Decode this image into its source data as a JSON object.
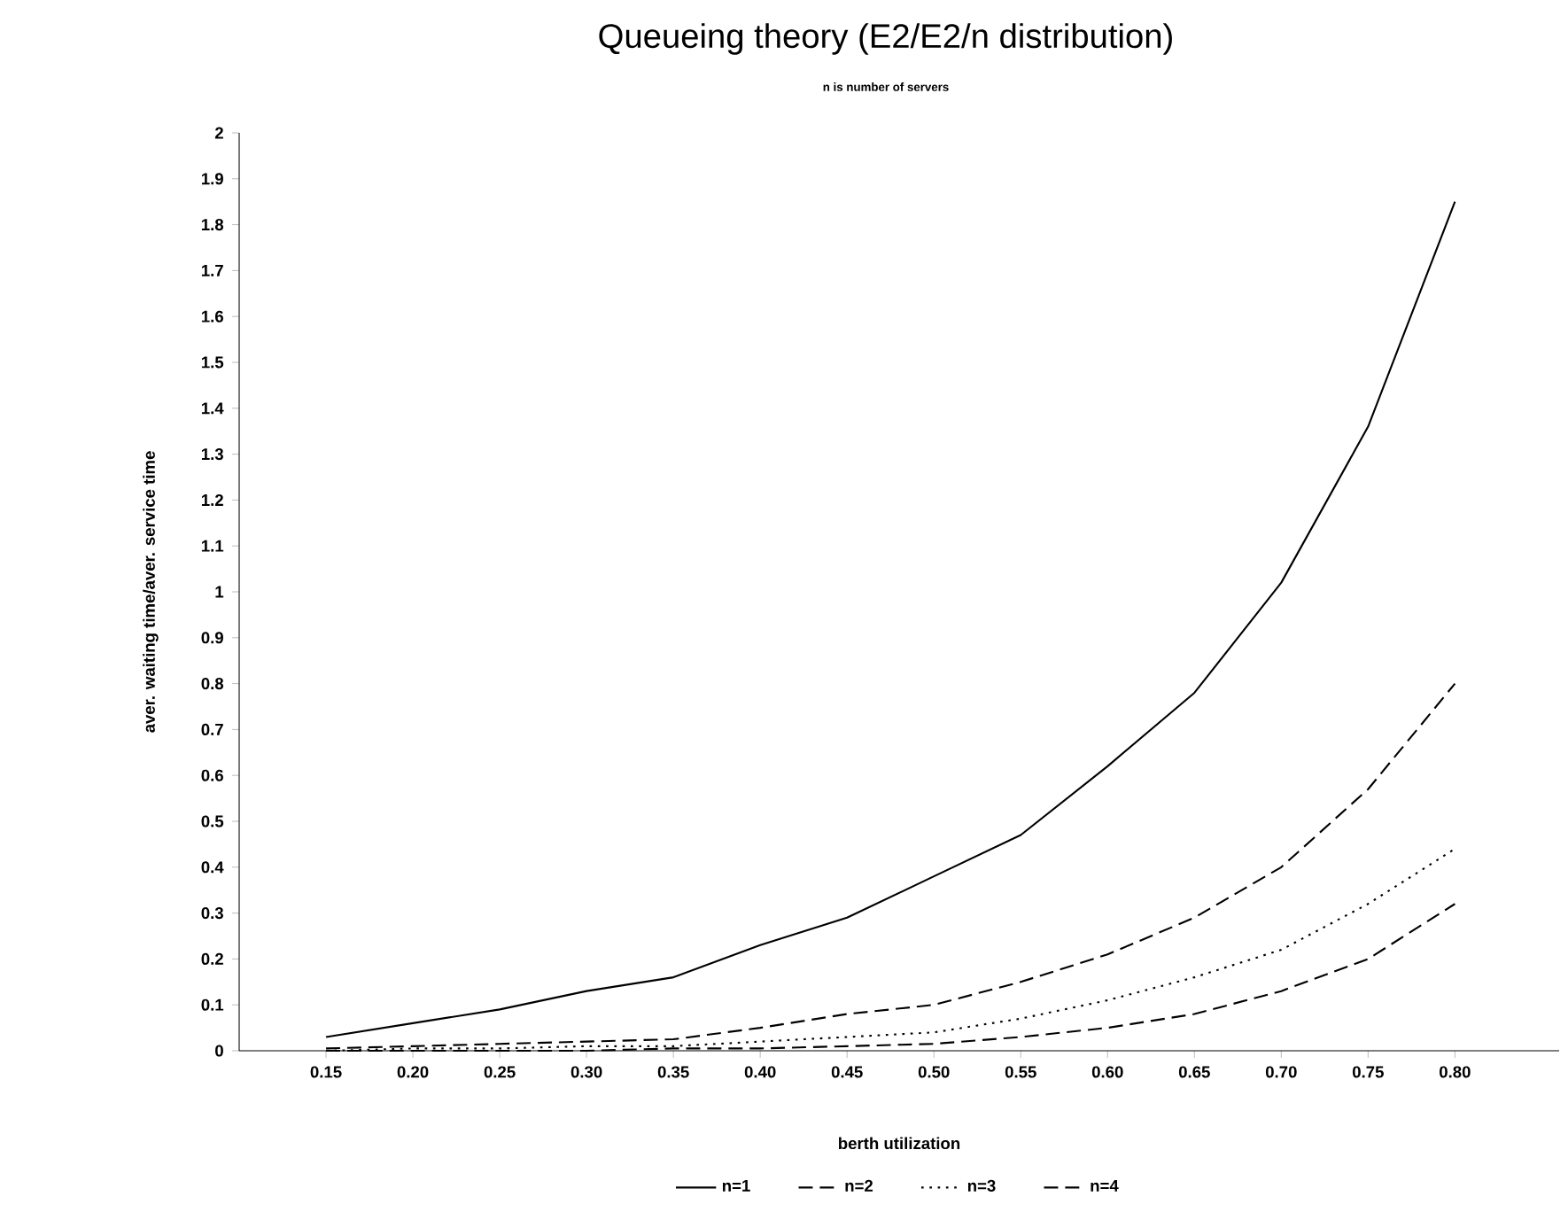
{
  "chart_data": {
    "type": "line",
    "title": "Queueing theory (E2/E2/n distribution)",
    "subtitle": "n is number of servers",
    "xlabel": "berth utilization",
    "ylabel": "aver. waiting time/aver. service time",
    "x": [
      0.15,
      0.2,
      0.25,
      0.3,
      0.35,
      0.4,
      0.45,
      0.5,
      0.55,
      0.6,
      0.65,
      0.7,
      0.75,
      0.8
    ],
    "series": [
      {
        "name": "n=1",
        "color": "#000000",
        "line_style": "solid",
        "values": [
          0.03,
          0.06,
          0.09,
          0.13,
          0.16,
          0.23,
          0.29,
          0.38,
          0.47,
          0.62,
          0.78,
          1.02,
          1.36,
          1.85
        ]
      },
      {
        "name": "n=2",
        "color": "#000000",
        "line_style": "dashed",
        "values": [
          0.005,
          0.01,
          0.015,
          0.02,
          0.025,
          0.05,
          0.08,
          0.1,
          0.15,
          0.21,
          0.29,
          0.4,
          0.57,
          0.8
        ]
      },
      {
        "name": "n=3",
        "color": "#000000",
        "line_style": "dotted",
        "values": [
          0,
          0.005,
          0.005,
          0.01,
          0.01,
          0.02,
          0.03,
          0.04,
          0.07,
          0.11,
          0.16,
          0.22,
          0.32,
          0.44
        ]
      },
      {
        "name": "n=4",
        "color": "#000000",
        "line_style": "dashed",
        "values": [
          0,
          0,
          0,
          0,
          0.005,
          0.005,
          0.01,
          0.015,
          0.03,
          0.05,
          0.08,
          0.13,
          0.2,
          0.32
        ]
      }
    ],
    "xlim": [
      0.1,
      0.86
    ],
    "ylim": [
      0,
      2
    ],
    "xticks": [
      0.15,
      {
        "value": 0.2,
        "label": "0.20"
      },
      0.25,
      {
        "value": 0.3,
        "label": "0.30"
      },
      0.35,
      {
        "value": 0.4,
        "label": "0.40"
      },
      0.45,
      {
        "value": 0.5,
        "label": "0.50"
      },
      0.55,
      {
        "value": 0.6,
        "label": "0.60"
      },
      0.65,
      {
        "value": 0.7,
        "label": "0.70"
      },
      0.75,
      {
        "value": 0.8,
        "label": "0.80"
      }
    ],
    "yticks": [
      0,
      0.1,
      0.2,
      0.3,
      0.4,
      0.5,
      0.6,
      0.7,
      0.8,
      0.9,
      1,
      1.1,
      1.2,
      1.3,
      1.4,
      1.5,
      1.6,
      1.7,
      1.8,
      1.9,
      2
    ],
    "legend": "bottom",
    "grid": false,
    "marker": "none"
  }
}
